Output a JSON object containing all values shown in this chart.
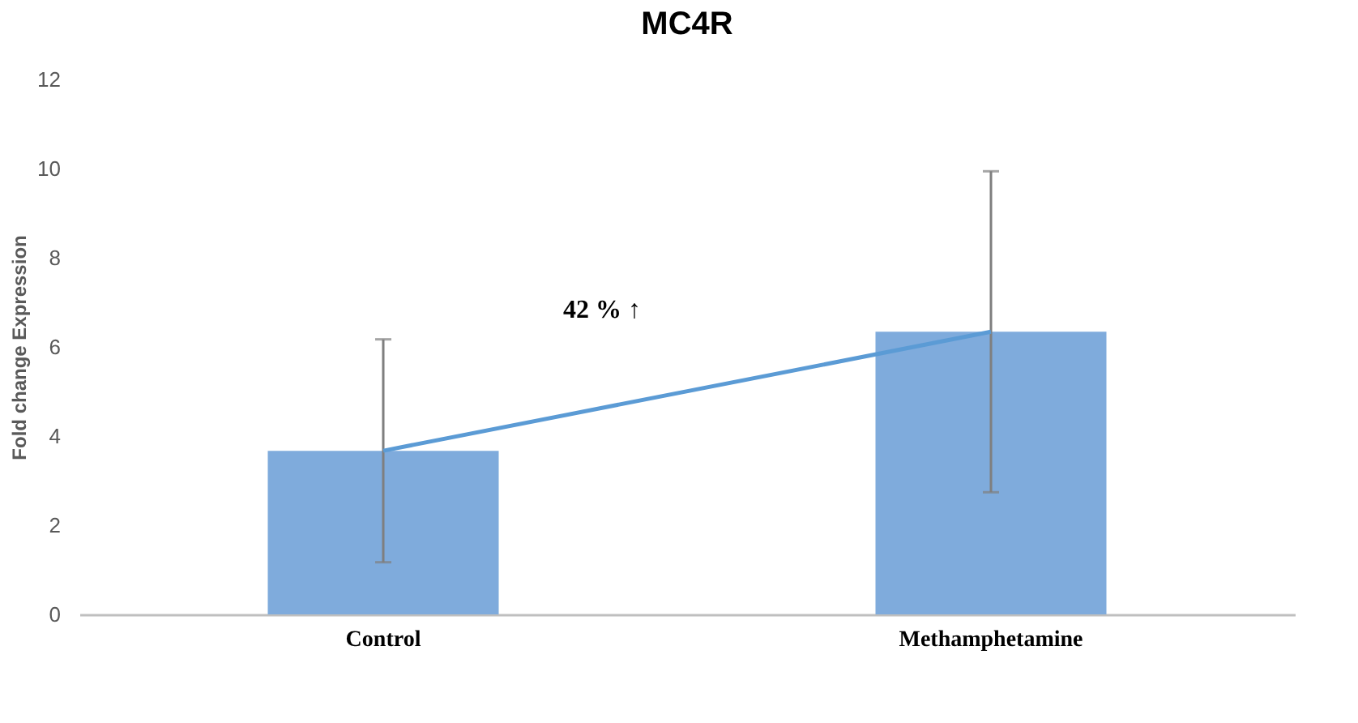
{
  "chart_data": {
    "type": "bar",
    "title": "MC4R",
    "ylabel": "Fold change Expression",
    "categories": [
      "Control",
      "Methamphetamine"
    ],
    "series": [
      {
        "color": "#7fabdc",
        "values": [
          3.67,
          6.34
        ],
        "errors": [
          2.5,
          3.6
        ]
      },
      {
        "type": "line",
        "color": "#5b9bd5",
        "values": [
          3.67,
          6.34
        ]
      }
    ],
    "ylim": [
      0,
      12
    ],
    "yticks": [
      0,
      2,
      4,
      6,
      8,
      10,
      12
    ],
    "grid": false,
    "annotations": [
      "42 % ↑"
    ]
  }
}
